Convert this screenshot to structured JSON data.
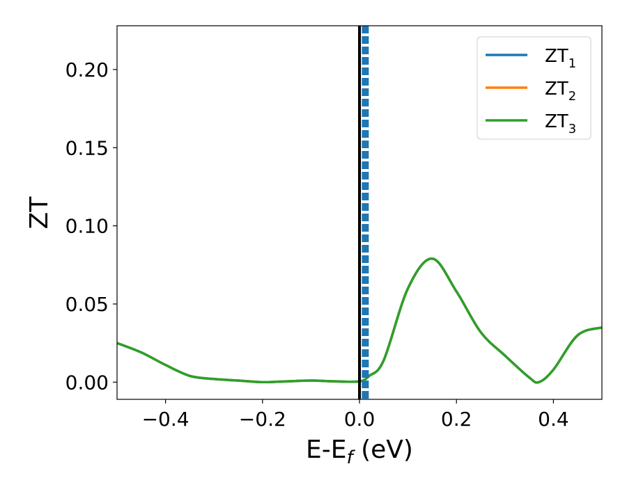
{
  "chart_data": {
    "type": "line",
    "xlabel": "E-E",
    "xlabel_sub": "f",
    "xlabel_unit": " (eV)",
    "ylabel": "ZT",
    "xlim": [
      -0.5,
      0.5
    ],
    "ylim": [
      -0.011,
      0.228
    ],
    "x_ticks": [
      -0.4,
      -0.2,
      0.0,
      0.2,
      0.4
    ],
    "x_tick_labels": [
      "−0.4",
      "−0.2",
      "0.0",
      "0.2",
      "0.4"
    ],
    "y_ticks": [
      0.0,
      0.05,
      0.1,
      0.15,
      0.2
    ],
    "y_tick_labels": [
      "0.00",
      "0.05",
      "0.10",
      "0.15",
      "0.20"
    ],
    "grid": false,
    "legend_position": "top-right",
    "series": [
      {
        "name": "ZT",
        "name_sub": "1",
        "color": "#1f77b4",
        "x": [
          -0.5,
          -0.45,
          -0.4,
          -0.35,
          -0.3,
          -0.25,
          -0.2,
          -0.15,
          -0.1,
          -0.05,
          0.0,
          0.02,
          0.05,
          0.1,
          0.15,
          0.2,
          0.25,
          0.3,
          0.35,
          0.37,
          0.4,
          0.45,
          0.5
        ],
        "y": [
          0.025,
          0.019,
          0.011,
          0.004,
          0.002,
          0.001,
          0.0,
          0.0005,
          0.001,
          0.0005,
          0.0005,
          0.004,
          0.014,
          0.06,
          0.079,
          0.058,
          0.032,
          0.017,
          0.003,
          0.0,
          0.008,
          0.03,
          0.035
        ]
      },
      {
        "name": "ZT",
        "name_sub": "2",
        "color": "#ff7f0e",
        "x": [
          -0.5,
          -0.45,
          -0.4,
          -0.35,
          -0.3,
          -0.25,
          -0.2,
          -0.15,
          -0.1,
          -0.05,
          0.0,
          0.02,
          0.05,
          0.1,
          0.15,
          0.2,
          0.25,
          0.3,
          0.35,
          0.37,
          0.4,
          0.45,
          0.5
        ],
        "y": [
          0.025,
          0.019,
          0.011,
          0.004,
          0.002,
          0.001,
          0.0,
          0.0005,
          0.001,
          0.0005,
          0.0005,
          0.004,
          0.014,
          0.06,
          0.079,
          0.058,
          0.032,
          0.017,
          0.003,
          0.0,
          0.008,
          0.03,
          0.035
        ]
      },
      {
        "name": "ZT",
        "name_sub": "3",
        "color": "#2ca02c",
        "x": [
          -0.5,
          -0.45,
          -0.4,
          -0.35,
          -0.3,
          -0.25,
          -0.2,
          -0.15,
          -0.1,
          -0.05,
          0.0,
          0.02,
          0.05,
          0.1,
          0.15,
          0.2,
          0.25,
          0.3,
          0.35,
          0.37,
          0.4,
          0.45,
          0.5
        ],
        "y": [
          0.025,
          0.019,
          0.011,
          0.004,
          0.002,
          0.001,
          0.0,
          0.0005,
          0.001,
          0.0005,
          0.0005,
          0.004,
          0.014,
          0.06,
          0.079,
          0.058,
          0.032,
          0.017,
          0.003,
          0.0,
          0.008,
          0.03,
          0.035
        ]
      }
    ],
    "vertical_lines": [
      {
        "x": 0.0,
        "color": "#000000",
        "style": "solid"
      },
      {
        "x": 0.012,
        "color": "#1f77b4",
        "style": "dashed"
      }
    ]
  }
}
